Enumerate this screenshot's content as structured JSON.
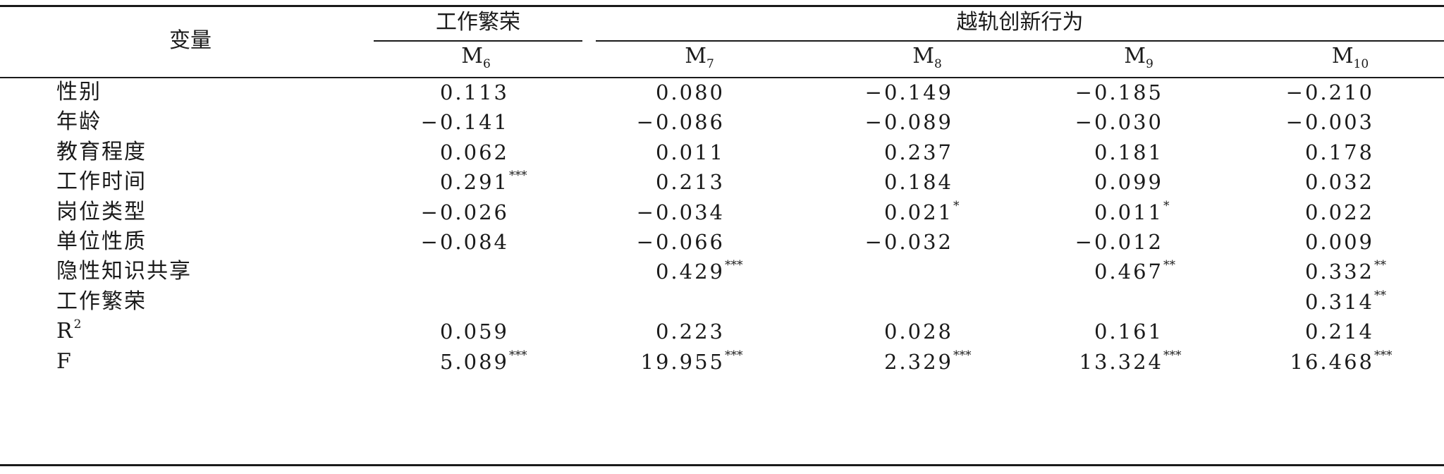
{
  "header": {
    "variable": "变量",
    "group_prosperity": "工作繁荣",
    "group_deviant": "越轨创新行为",
    "models": [
      {
        "base": "M",
        "sub": "6"
      },
      {
        "base": "M",
        "sub": "7"
      },
      {
        "base": "M",
        "sub": "8"
      },
      {
        "base": "M",
        "sub": "9"
      },
      {
        "base": "M",
        "sub": "10"
      }
    ]
  },
  "rows": [
    {
      "label": "性别",
      "label_sup": "",
      "cells": [
        {
          "v": "0.113",
          "s": ""
        },
        {
          "v": "0.080",
          "s": ""
        },
        {
          "v": "−0.149",
          "s": ""
        },
        {
          "v": "−0.185",
          "s": ""
        },
        {
          "v": "−0.210",
          "s": ""
        }
      ]
    },
    {
      "label": "年龄",
      "label_sup": "",
      "cells": [
        {
          "v": "−0.141",
          "s": ""
        },
        {
          "v": "−0.086",
          "s": ""
        },
        {
          "v": "−0.089",
          "s": ""
        },
        {
          "v": "−0.030",
          "s": ""
        },
        {
          "v": "−0.003",
          "s": ""
        }
      ]
    },
    {
      "label": "教育程度",
      "label_sup": "",
      "cells": [
        {
          "v": "0.062",
          "s": ""
        },
        {
          "v": "0.011",
          "s": ""
        },
        {
          "v": "0.237",
          "s": ""
        },
        {
          "v": "0.181",
          "s": ""
        },
        {
          "v": "0.178",
          "s": ""
        }
      ]
    },
    {
      "label": "工作时间",
      "label_sup": "",
      "cells": [
        {
          "v": "0.291",
          "s": "***"
        },
        {
          "v": "0.213",
          "s": ""
        },
        {
          "v": "0.184",
          "s": ""
        },
        {
          "v": "0.099",
          "s": ""
        },
        {
          "v": "0.032",
          "s": ""
        }
      ]
    },
    {
      "label": "岗位类型",
      "label_sup": "",
      "cells": [
        {
          "v": "−0.026",
          "s": ""
        },
        {
          "v": "−0.034",
          "s": ""
        },
        {
          "v": "0.021",
          "s": "*"
        },
        {
          "v": "0.011",
          "s": "*"
        },
        {
          "v": "0.022",
          "s": ""
        }
      ]
    },
    {
      "label": "单位性质",
      "label_sup": "",
      "cells": [
        {
          "v": "−0.084",
          "s": ""
        },
        {
          "v": "−0.066",
          "s": ""
        },
        {
          "v": "−0.032",
          "s": ""
        },
        {
          "v": "−0.012",
          "s": ""
        },
        {
          "v": "0.009",
          "s": ""
        }
      ]
    },
    {
      "label": "隐性知识共享",
      "label_sup": "",
      "cells": [
        {
          "v": "",
          "s": ""
        },
        {
          "v": "0.429",
          "s": "***"
        },
        {
          "v": "",
          "s": ""
        },
        {
          "v": "0.467",
          "s": "**"
        },
        {
          "v": "0.332",
          "s": "**"
        }
      ]
    },
    {
      "label": "工作繁荣",
      "label_sup": "",
      "cells": [
        {
          "v": "",
          "s": ""
        },
        {
          "v": "",
          "s": ""
        },
        {
          "v": "",
          "s": ""
        },
        {
          "v": "",
          "s": ""
        },
        {
          "v": "0.314",
          "s": "**"
        }
      ]
    },
    {
      "label": "R",
      "label_sup": "2",
      "cells": [
        {
          "v": "0.059",
          "s": ""
        },
        {
          "v": "0.223",
          "s": ""
        },
        {
          "v": "0.028",
          "s": ""
        },
        {
          "v": "0.161",
          "s": ""
        },
        {
          "v": "0.214",
          "s": ""
        }
      ]
    },
    {
      "label": "F",
      "label_sup": "",
      "cells": [
        {
          "v": "5.089",
          "s": "***"
        },
        {
          "v": "19.955",
          "s": "***"
        },
        {
          "v": "2.329",
          "s": "***"
        },
        {
          "v": "13.324",
          "s": "***"
        },
        {
          "v": "16.468",
          "s": "***"
        }
      ]
    }
  ]
}
